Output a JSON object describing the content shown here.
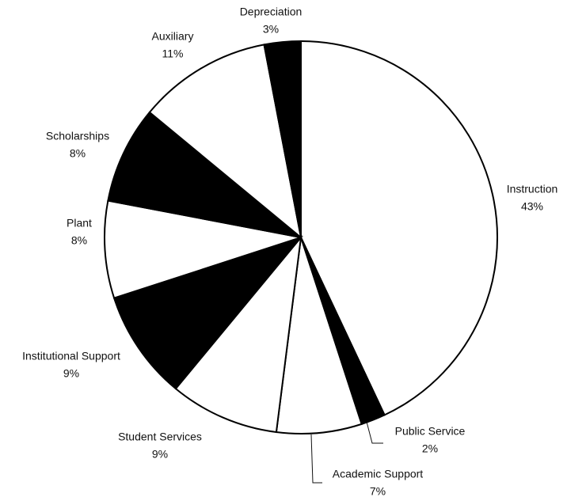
{
  "chart_data": {
    "type": "pie",
    "categories": [
      "Instruction",
      "Public Service",
      "Academic Support",
      "Student Services",
      "Institutional Support",
      "Plant",
      "Scholarships",
      "Auxiliary",
      "Depreciation"
    ],
    "values": [
      43,
      2,
      7,
      9,
      9,
      8,
      8,
      11,
      3
    ],
    "value_labels": [
      "43%",
      "2%",
      "7%",
      "9%",
      "9%",
      "8%",
      "8%",
      "11%",
      "3%"
    ],
    "colors": [
      "#ffffff",
      "#000000",
      "#ffffff",
      "#ffffff",
      "#000000",
      "#ffffff",
      "#000000",
      "#ffffff",
      "#000000"
    ]
  }
}
